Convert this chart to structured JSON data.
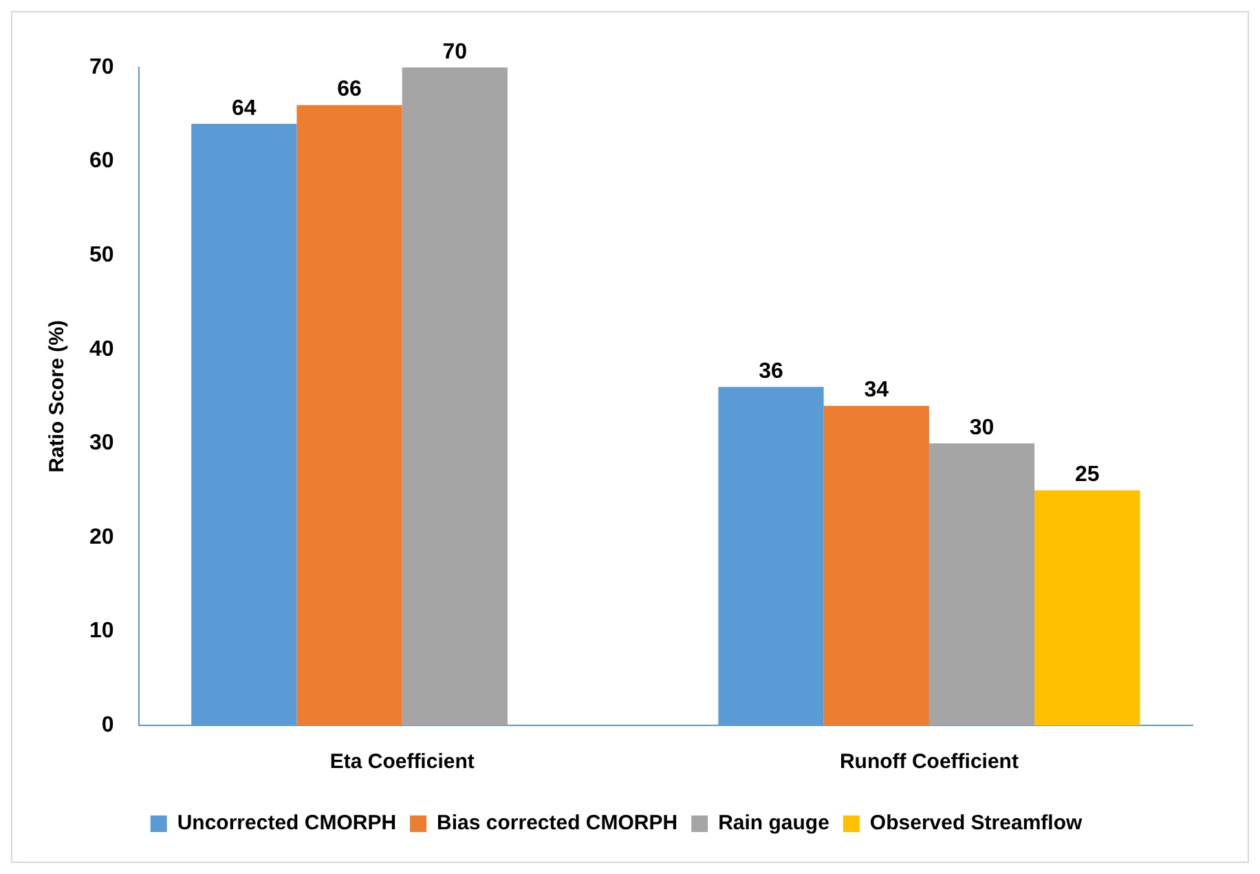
{
  "chart_data": {
    "type": "bar",
    "ylabel": "Ratio Score (%)",
    "categories": [
      "Eta Coefficient",
      "Runoff Coefficient"
    ],
    "series": [
      {
        "name": "Uncorrected CMORPH",
        "color": "#5b9bd5",
        "values": [
          64,
          36
        ]
      },
      {
        "name": "Bias corrected CMORPH",
        "color": "#ed7d31",
        "values": [
          66,
          34
        ]
      },
      {
        "name": "Rain gauge",
        "color": "#a5a5a5",
        "values": [
          70,
          30
        ]
      },
      {
        "name": "Observed Streamflow",
        "color": "#ffc000",
        "values": [
          null,
          25
        ]
      }
    ],
    "ylim": [
      0,
      70
    ],
    "yticks": [
      0,
      10,
      20,
      30,
      40,
      50,
      60,
      70
    ],
    "grid": false,
    "legend": "bottom",
    "data_labels": true
  }
}
